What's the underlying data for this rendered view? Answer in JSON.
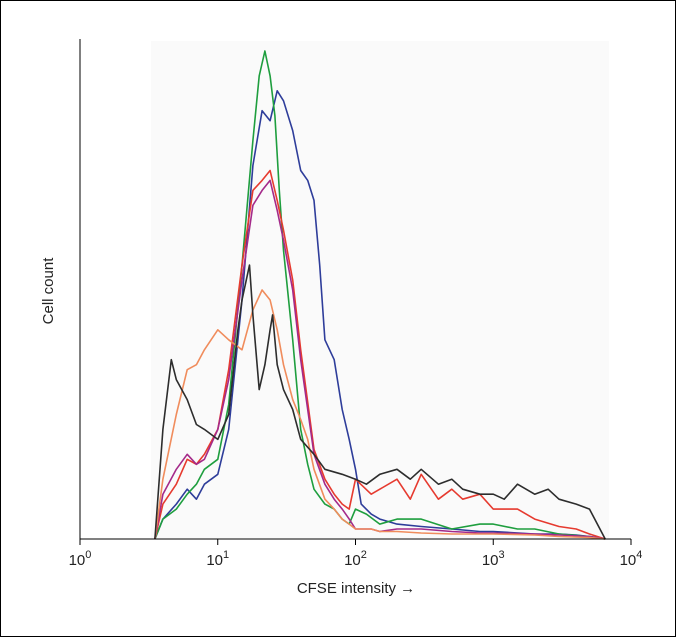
{
  "chart_data": {
    "type": "line",
    "xlabel": "CFSE intensity →",
    "ylabel": "Cell count",
    "x_scale": "log",
    "xlim": [
      1,
      10000
    ],
    "ylim": [
      0,
      100
    ],
    "x_ticks": [
      {
        "value": 1,
        "base": "10",
        "exp": "0"
      },
      {
        "value": 10,
        "base": "10",
        "exp": "1"
      },
      {
        "value": 100,
        "base": "10",
        "exp": "2"
      },
      {
        "value": 1000,
        "base": "10",
        "exp": "3"
      },
      {
        "value": 10000,
        "base": "10",
        "exp": "4"
      }
    ],
    "grid": false,
    "legend": "none",
    "series": [
      {
        "color": "#2e3d9a",
        "x": [
          3.5,
          4,
          5,
          6,
          7,
          8,
          10,
          12,
          15,
          18,
          21,
          24,
          27,
          30,
          35,
          40,
          45,
          50,
          55,
          60,
          70,
          80,
          90,
          100,
          110,
          130,
          150,
          200,
          300,
          500,
          800,
          1000,
          2000,
          3000,
          4000,
          5000,
          6500
        ],
        "y": [
          0,
          4,
          7,
          10,
          8,
          11,
          13,
          22,
          48,
          75,
          86,
          84,
          90,
          88,
          82,
          74,
          72,
          68,
          55,
          40,
          36,
          26,
          20,
          14,
          7,
          5,
          4,
          3,
          2.5,
          2,
          1.5,
          1.5,
          1,
          1,
          0.8,
          0.5,
          0
        ]
      },
      {
        "color": "#1e9e3e",
        "x": [
          3.5,
          4,
          5,
          6,
          7,
          8,
          10,
          12,
          15,
          18,
          20,
          22,
          24,
          26,
          28,
          30,
          35,
          40,
          45,
          50,
          60,
          70,
          80,
          90,
          100,
          120,
          150,
          200,
          300,
          500,
          800,
          1000,
          1500,
          2000,
          3000,
          5000,
          6500
        ],
        "y": [
          0,
          4,
          6,
          9,
          11,
          14,
          16,
          27,
          55,
          80,
          93,
          98,
          93,
          85,
          70,
          58,
          40,
          22,
          15,
          10,
          7,
          6,
          4,
          3,
          6,
          5,
          3,
          4,
          4,
          2,
          3,
          3,
          2,
          2,
          1,
          0.5,
          0
        ]
      },
      {
        "color": "#e63a2f",
        "x": [
          3.5,
          4,
          5,
          6,
          7,
          8,
          10,
          12,
          15,
          18,
          21,
          24,
          27,
          30,
          35,
          40,
          50,
          60,
          70,
          80,
          90,
          100,
          130,
          150,
          200,
          250,
          300,
          400,
          500,
          600,
          800,
          1000,
          1500,
          2000,
          3000,
          4000,
          5000,
          6500
        ],
        "y": [
          0,
          7,
          11,
          16,
          15,
          17,
          22,
          34,
          55,
          70,
          72,
          74,
          68,
          62,
          52,
          38,
          18,
          12,
          9,
          7,
          6,
          12,
          9,
          10,
          12,
          8,
          13,
          8,
          10,
          8,
          9,
          6,
          6,
          4,
          2.5,
          2,
          1,
          0
        ]
      },
      {
        "color": "#a42a8a",
        "x": [
          3.5,
          4,
          5,
          6,
          7,
          8,
          10,
          12,
          15,
          18,
          21,
          24,
          27,
          30,
          35,
          40,
          50,
          60,
          70,
          80,
          90,
          100,
          130,
          150,
          200,
          300,
          500,
          800,
          1000,
          2000,
          3000,
          5000,
          6500
        ],
        "y": [
          0,
          9,
          14,
          17,
          15,
          16,
          22,
          32,
          52,
          67,
          70,
          72,
          66,
          60,
          50,
          36,
          17,
          11,
          8,
          6,
          4,
          2,
          2,
          1.5,
          2,
          2,
          1.5,
          1.2,
          1.2,
          1,
          0.8,
          0.5,
          0
        ]
      },
      {
        "color": "#f08c5c",
        "x": [
          3.5,
          4,
          5,
          6,
          7,
          8,
          10,
          12,
          15,
          18,
          21,
          24,
          27,
          30,
          35,
          40,
          45,
          50,
          60,
          70,
          80,
          90,
          100,
          130,
          150,
          200,
          300,
          500,
          800,
          1000,
          2000,
          3000,
          5000,
          6500
        ],
        "y": [
          0,
          12,
          25,
          34,
          35,
          38,
          42,
          40,
          38,
          46,
          50,
          48,
          42,
          35,
          28,
          24,
          20,
          14,
          8,
          6,
          4,
          3,
          2,
          2,
          1.5,
          1.5,
          1.2,
          1,
          1,
          1,
          0.8,
          0.5,
          0.3,
          0
        ]
      },
      {
        "color": "#2d2d2d",
        "x": [
          3.5,
          4,
          4.6,
          5,
          6,
          7,
          8,
          10,
          12,
          14,
          15,
          17,
          18,
          20,
          22,
          24,
          25,
          27,
          30,
          35,
          40,
          50,
          60,
          80,
          100,
          120,
          150,
          200,
          250,
          300,
          400,
          500,
          600,
          800,
          1000,
          1200,
          1500,
          2000,
          2500,
          3000,
          4000,
          5000,
          6500
        ],
        "y": [
          0,
          22,
          36,
          32,
          28,
          23,
          22,
          20,
          25,
          42,
          48,
          55,
          45,
          30,
          35,
          42,
          45,
          35,
          30,
          26,
          20,
          17,
          14,
          13,
          12,
          11,
          13,
          14,
          12,
          14,
          11,
          12,
          10,
          9,
          9,
          8,
          11,
          9,
          10,
          8,
          7,
          6,
          0
        ]
      }
    ]
  }
}
